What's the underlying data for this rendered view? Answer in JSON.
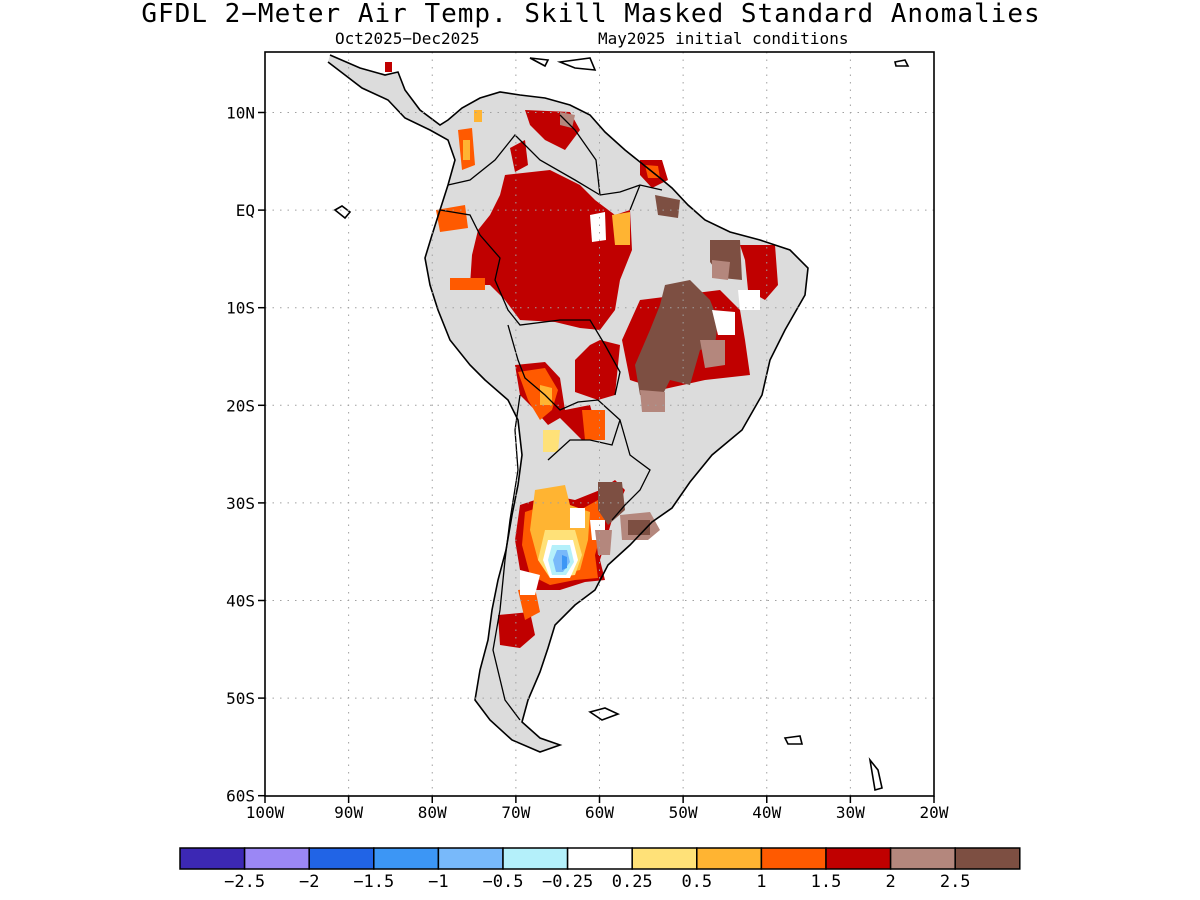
{
  "title": "GFDL 2−Meter Air Temp. Skill Masked Standard Anomalies",
  "subtitle_left": "Oct2025−Dec2025",
  "subtitle_right": "May2025 initial conditions",
  "lon_labels": [
    "100W",
    "90W",
    "80W",
    "70W",
    "60W",
    "50W",
    "40W",
    "30W",
    "20W"
  ],
  "lat_labels": [
    "10N",
    "EQ",
    "10S",
    "20S",
    "30S",
    "40S",
    "50S",
    "60S"
  ],
  "colorbar": {
    "colors": [
      "#3c28b4",
      "#9b87f5",
      "#2164e6",
      "#3c96f5",
      "#78b9fa",
      "#b4f0fa",
      "#ffffff",
      "#ffe178",
      "#ffb432",
      "#ff5a00",
      "#c00000",
      "#b4877d",
      "#7d4f42"
    ],
    "labels": [
      "−2.5",
      "−2",
      "−1.5",
      "−1",
      "−0.5",
      "−0.25",
      "0.25",
      "0.5",
      "1",
      "1.5",
      "2",
      "2.5"
    ]
  },
  "colors": {
    "masked": "#dcdcdc",
    "coastline": "#000000",
    "grid": "#a0a0a0"
  }
}
